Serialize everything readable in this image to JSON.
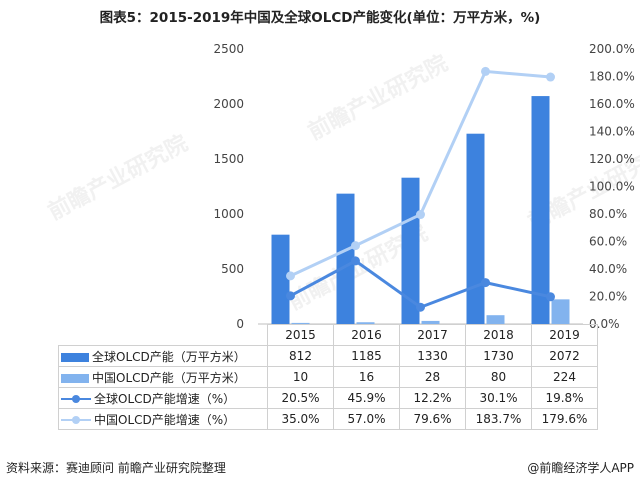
{
  "title": "图表5：2015-2019年中国及全球OLCD产能变化(单位：万平方米，%)",
  "footer": {
    "source": "资料来源：赛迪顾问 前瞻产业研究院整理",
    "brand": "@前瞻经济学人APP"
  },
  "watermark": "前瞻产业研究院",
  "colors": {
    "global_bar": "#3d82de",
    "china_bar": "#82b3ee",
    "global_line": "#4a88df",
    "china_line": "#b2d0f5"
  },
  "chart_data": {
    "type": "bar",
    "categories": [
      "2015",
      "2016",
      "2017",
      "2018",
      "2019"
    ],
    "series": [
      {
        "name": "全球OLCD产能（万平方米）",
        "kind": "bar",
        "axis": "left",
        "values": [
          812,
          1185,
          1330,
          1730,
          2072
        ],
        "display": [
          "812",
          "1185",
          "1330",
          "1730",
          "2072"
        ]
      },
      {
        "name": "中国OLCD产能（万平方米）",
        "kind": "bar",
        "axis": "left",
        "values": [
          10,
          16,
          28,
          80,
          224
        ],
        "display": [
          "10",
          "16",
          "28",
          "80",
          "224"
        ]
      },
      {
        "name": "全球OLCD产能增速（%）",
        "kind": "line",
        "axis": "right",
        "values": [
          20.5,
          45.9,
          12.2,
          30.1,
          19.8
        ],
        "display": [
          "20.5%",
          "45.9%",
          "12.2%",
          "30.1%",
          "19.8%"
        ]
      },
      {
        "name": "中国OLCD产能增速（%）",
        "kind": "line",
        "axis": "right",
        "values": [
          35.0,
          57.0,
          79.6,
          183.7,
          179.6
        ],
        "display": [
          "35.0%",
          "57.0%",
          "79.6%",
          "183.7%",
          "179.6%"
        ]
      }
    ],
    "ylim_left": [
      0,
      2500
    ],
    "yticks_left": [
      "0",
      "500",
      "1000",
      "1500",
      "2000",
      "2500"
    ],
    "ylim_right": [
      0,
      200
    ],
    "yticks_right": [
      "0.0%",
      "20.0%",
      "40.0%",
      "60.0%",
      "80.0%",
      "100.0%",
      "120.0%",
      "140.0%",
      "160.0%",
      "180.0%",
      "200.0%"
    ],
    "grid": false,
    "legend": "data-table"
  }
}
